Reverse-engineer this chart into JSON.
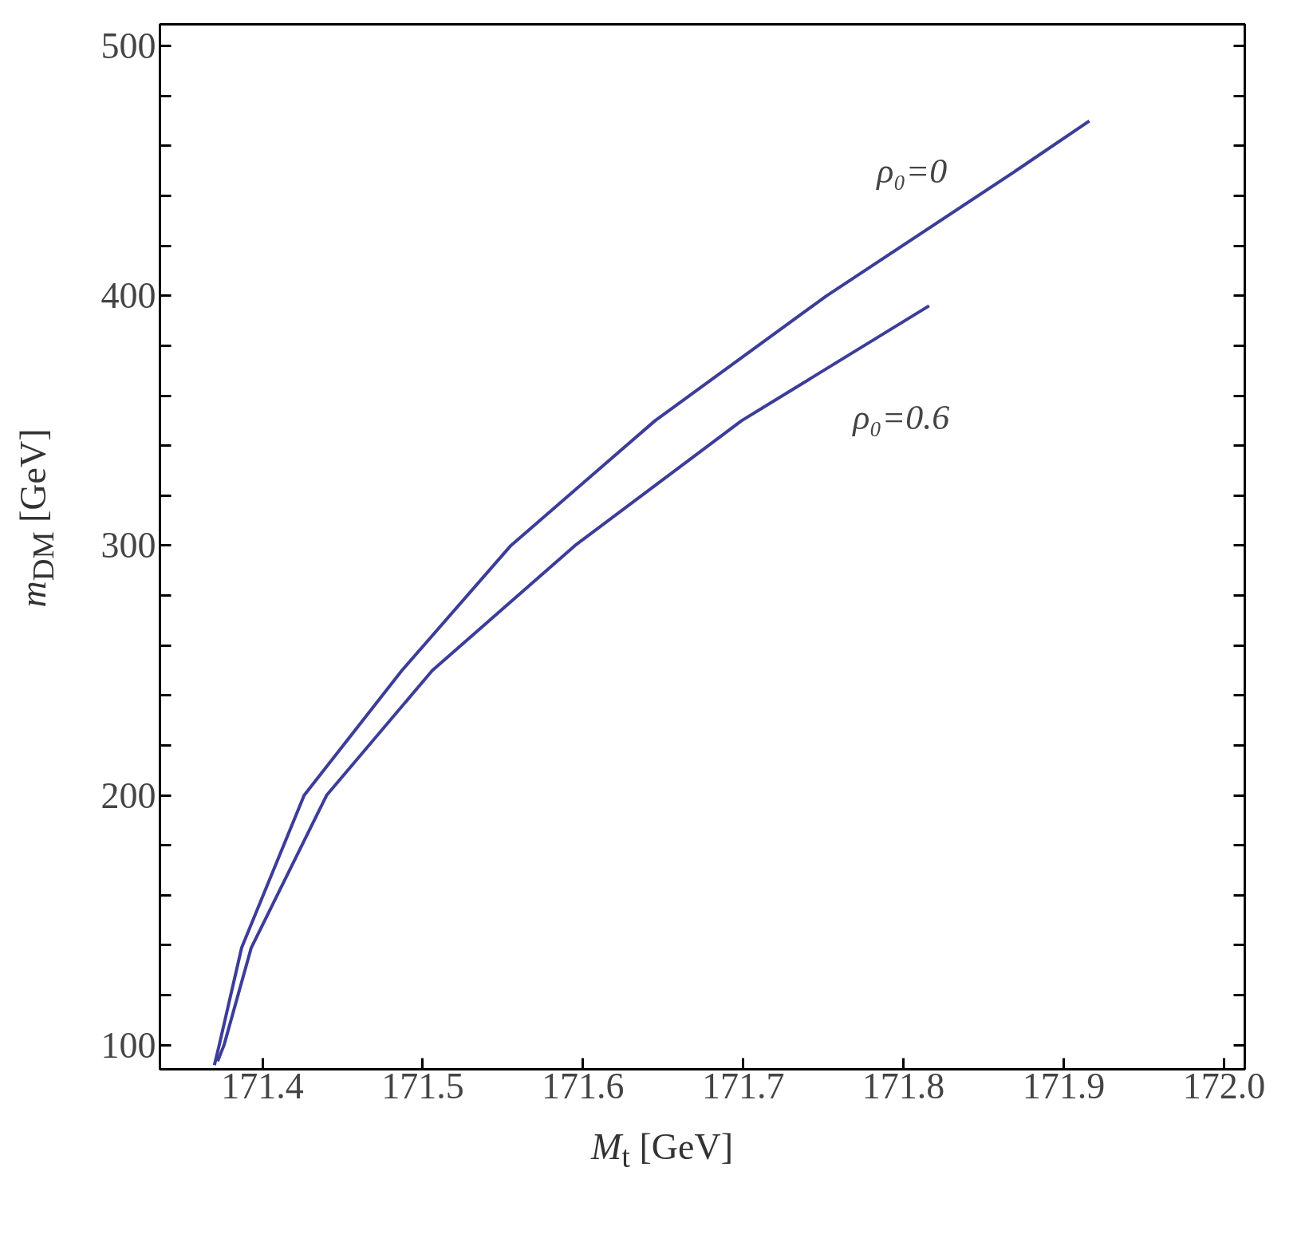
{
  "chart_data": {
    "type": "line",
    "xlabel": "M$_{t}$ [GeV]",
    "ylabel": "m$_{DM}$ [GeV]",
    "xlim": [
      171.336,
      172.013
    ],
    "ylim": [
      90.3,
      508.7
    ],
    "xticks": [
      171.4,
      171.5,
      171.6,
      171.7,
      171.8,
      171.9,
      {
        "value": 172.0,
        "label": "172.0"
      }
    ],
    "yticks": [
      {
        "value": 100,
        "label": "100"
      },
      {
        "value": 120,
        "label": null
      },
      {
        "value": 140,
        "label": null
      },
      {
        "value": 160,
        "label": null
      },
      {
        "value": 180,
        "label": null
      },
      {
        "value": 200,
        "label": "200"
      },
      {
        "value": 220,
        "label": null
      },
      {
        "value": 240,
        "label": null
      },
      {
        "value": 260,
        "label": null
      },
      {
        "value": 280,
        "label": null
      },
      {
        "value": 300,
        "label": "300"
      },
      {
        "value": 320,
        "label": null
      },
      {
        "value": 340,
        "label": null
      },
      {
        "value": 360,
        "label": null
      },
      {
        "value": 380,
        "label": null
      },
      {
        "value": 400,
        "label": "400"
      },
      {
        "value": 420,
        "label": null
      },
      {
        "value": 440,
        "label": null
      },
      {
        "value": 460,
        "label": null
      },
      {
        "value": 480,
        "label": null
      },
      {
        "value": 500,
        "label": "500"
      }
    ],
    "grid": false,
    "marker": "none",
    "line_style": "solid",
    "series": [
      {
        "color": "#3d3d99",
        "x": [
          171.37,
          171.373,
          171.387,
          171.426,
          171.487,
          171.555,
          171.645,
          171.752,
          171.87,
          171.916
        ],
        "values": [
          92,
          100,
          139,
          200,
          250,
          300,
          350,
          400,
          450,
          470
        ]
      },
      {
        "color": "#3d3d99",
        "x": [
          171.372,
          171.376,
          171.393,
          171.44,
          171.506,
          171.595,
          171.699,
          171.816
        ],
        "values": [
          93.5,
          100,
          139,
          200,
          250,
          300,
          350,
          396
        ]
      }
    ],
    "annotations": [
      "ρ₀=0",
      "ρ₀=0.6"
    ]
  }
}
